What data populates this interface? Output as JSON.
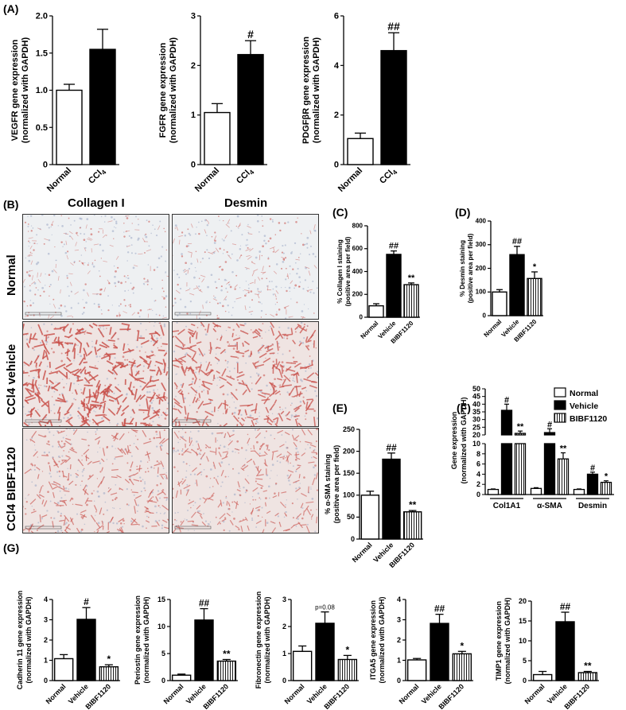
{
  "panel_labels": {
    "A": "(A)",
    "B": "(B)",
    "C": "(C)",
    "D": "(D)",
    "E": "(E)",
    "F": "(F)",
    "G": "(G)"
  },
  "histology": {
    "column_headers": [
      "Collagen I",
      "Desmin"
    ],
    "row_labels": [
      "Normal",
      "CCl4 vehicle",
      "CCl4 BIBF1120"
    ],
    "stain_color": "#c9504a"
  },
  "colors": {
    "normal": "#ffffff",
    "vehicle": "#000000",
    "bibf": "hatched",
    "axis": "#000000"
  },
  "chart_data": [
    {
      "id": "A1",
      "type": "bar",
      "categories": [
        "Normal",
        "CCl4"
      ],
      "values": [
        1.0,
        1.55
      ],
      "errors": [
        0.08,
        0.27
      ],
      "styles": [
        "normal",
        "vehicle"
      ],
      "sig": [
        "",
        ""
      ],
      "ylabel": "VEGFR gene expression",
      "ylabel2": "(normalized with GAPDH)",
      "ylim": [
        0,
        2.0
      ],
      "yticks": [
        "0",
        "0.5",
        "1.0",
        "1.5",
        "2.0"
      ]
    },
    {
      "id": "A2",
      "type": "bar",
      "categories": [
        "Normal",
        "CCl4"
      ],
      "values": [
        1.05,
        2.22
      ],
      "errors": [
        0.18,
        0.28
      ],
      "styles": [
        "normal",
        "vehicle"
      ],
      "sig": [
        "",
        "#"
      ],
      "ylabel": "FGFR gene expression",
      "ylabel2": "(normalized with GAPDH)",
      "ylim": [
        0,
        3
      ],
      "yticks": [
        "0",
        "1",
        "2",
        "3"
      ]
    },
    {
      "id": "A3",
      "type": "bar",
      "categories": [
        "Normal",
        "CCl4"
      ],
      "values": [
        1.05,
        4.6
      ],
      "errors": [
        0.22,
        0.72
      ],
      "styles": [
        "normal",
        "vehicle"
      ],
      "sig": [
        "",
        "##"
      ],
      "ylabel": "PDGFβR gene expression",
      "ylabel2": "(normalized with GAPDH)",
      "ylim": [
        0,
        6
      ],
      "yticks": [
        "0",
        "2",
        "4",
        "6"
      ]
    },
    {
      "id": "C",
      "type": "bar",
      "categories": [
        "Normal",
        "Vehicle",
        "BIBF1120"
      ],
      "values": [
        100,
        550,
        285
      ],
      "errors": [
        18,
        30,
        15
      ],
      "styles": [
        "normal",
        "vehicle",
        "bibf"
      ],
      "sig": [
        "",
        "##",
        "**"
      ],
      "ylabel": "% Collagen I staining",
      "ylabel2": "(positive area per field)",
      "ylim": [
        0,
        800
      ],
      "yticks": [
        "0",
        "200",
        "400",
        "600",
        "800"
      ]
    },
    {
      "id": "D",
      "type": "bar",
      "categories": [
        "Normal",
        "Vehicle",
        "BIBF1120"
      ],
      "values": [
        100,
        258,
        157
      ],
      "errors": [
        10,
        35,
        28
      ],
      "styles": [
        "normal",
        "vehicle",
        "bibf"
      ],
      "sig": [
        "",
        "##",
        "*"
      ],
      "ylabel": "% Desmin staining",
      "ylabel2": "(positive area per field)",
      "ylim": [
        0,
        400
      ],
      "yticks": [
        "0",
        "100",
        "200",
        "300",
        "400"
      ]
    },
    {
      "id": "E",
      "type": "bar",
      "categories": [
        "Normal",
        "Vehicle",
        "BIBF1120"
      ],
      "values": [
        100,
        182,
        62
      ],
      "errors": [
        9,
        14,
        3
      ],
      "styles": [
        "normal",
        "vehicle",
        "bibf"
      ],
      "sig": [
        "",
        "##",
        "**"
      ],
      "ylabel": "% α-SMA staining",
      "ylabel2": "(positive area per field)",
      "ylim": [
        0,
        250
      ],
      "yticks": [
        "0",
        "50",
        "100",
        "150",
        "200",
        "250"
      ]
    },
    {
      "id": "F",
      "type": "bar",
      "categories": [
        "Col1A1",
        "α-SMA",
        "Desmin"
      ],
      "series": [
        {
          "name": "Normal",
          "values": [
            1.0,
            1.2,
            1.0
          ],
          "errors": [
            0.1,
            0.15,
            0.1
          ],
          "style": "normal"
        },
        {
          "name": "Vehicle",
          "values": [
            36,
            21.5,
            4.0
          ],
          "errors": [
            4,
            2.5,
            0.4
          ],
          "style": "vehicle"
        },
        {
          "name": "BIBF1120",
          "values": [
            21,
            7.0,
            2.4
          ],
          "errors": [
            1.5,
            1.2,
            0.3
          ],
          "style": "bibf"
        }
      ],
      "sig": [
        [
          "",
          "#",
          "**"
        ],
        [
          "",
          "#",
          "**"
        ],
        [
          "",
          "#",
          "*"
        ]
      ],
      "ylabel": "Gene expression",
      "ylabel2": "(normalized with GAPDH)",
      "broken_axis": {
        "lower": [
          0,
          10
        ],
        "upper": [
          20,
          50
        ]
      },
      "yticks_lower": [
        "0",
        "2",
        "4",
        "6",
        "8",
        "10"
      ],
      "yticks_upper": [
        "20",
        "25",
        "30",
        "35",
        "40",
        "45",
        "50"
      ]
    },
    {
      "id": "G1",
      "type": "bar",
      "categories": [
        "Normal",
        "Vehicle",
        "BIBF1120"
      ],
      "values": [
        1.08,
        3.02,
        0.68
      ],
      "errors": [
        0.2,
        0.58,
        0.1
      ],
      "styles": [
        "normal",
        "vehicle",
        "bibf"
      ],
      "sig": [
        "",
        "#",
        "*"
      ],
      "ylabel": "Cadherin 11 gene expression",
      "ylabel2": "(normalized with GAPDH)",
      "ylim": [
        0,
        4
      ],
      "yticks": [
        "0",
        "1",
        "2",
        "3",
        "4"
      ]
    },
    {
      "id": "G2",
      "type": "bar",
      "categories": [
        "Normal",
        "Vehicle",
        "BIBF1120"
      ],
      "values": [
        1.0,
        11.2,
        3.6
      ],
      "errors": [
        0.2,
        2.1,
        0.3
      ],
      "styles": [
        "normal",
        "vehicle",
        "bibf"
      ],
      "sig": [
        "",
        "##",
        "**"
      ],
      "ylabel": "Periostin gene expression",
      "ylabel2": "(normalized with GAPDH)",
      "ylim": [
        0,
        15
      ],
      "yticks": [
        "0",
        "5",
        "10",
        "15"
      ]
    },
    {
      "id": "G3",
      "type": "bar",
      "categories": [
        "Normal",
        "Vehicle",
        "BIBF1120"
      ],
      "values": [
        1.08,
        2.12,
        0.78
      ],
      "errors": [
        0.2,
        0.42,
        0.15
      ],
      "styles": [
        "normal",
        "vehicle",
        "bibf"
      ],
      "sig": [
        "",
        "p=0.08",
        "*"
      ],
      "ylabel": "Fibronectin gene expression",
      "ylabel2": "(normalized with GAPDH)",
      "ylim": [
        0,
        3
      ],
      "yticks": [
        "0",
        "1",
        "2",
        "3"
      ]
    },
    {
      "id": "G4",
      "type": "bar",
      "categories": [
        "Normal",
        "Vehicle",
        "BIBF1120"
      ],
      "values": [
        1.02,
        2.82,
        1.32
      ],
      "errors": [
        0.07,
        0.45,
        0.12
      ],
      "styles": [
        "normal",
        "vehicle",
        "bibf"
      ],
      "sig": [
        "",
        "##",
        "*"
      ],
      "ylabel": "ITGA5 gene expression",
      "ylabel2": "(normalized with GAPDH)",
      "ylim": [
        0,
        4
      ],
      "yticks": [
        "0",
        "1",
        "2",
        "3",
        "4"
      ]
    },
    {
      "id": "G5",
      "type": "bar",
      "categories": [
        "Normal",
        "Vehicle",
        "BIBF1120"
      ],
      "values": [
        1.5,
        14.8,
        2.0
      ],
      "errors": [
        0.8,
        2.4,
        0.3
      ],
      "styles": [
        "normal",
        "vehicle",
        "bibf"
      ],
      "sig": [
        "",
        "##",
        "**"
      ],
      "ylabel": "TIMP1 gene expression",
      "ylabel2": "(normalized with GAPDH)",
      "ylim": [
        0,
        20
      ],
      "yticks": [
        "0",
        "5",
        "10",
        "15",
        "20"
      ]
    }
  ]
}
